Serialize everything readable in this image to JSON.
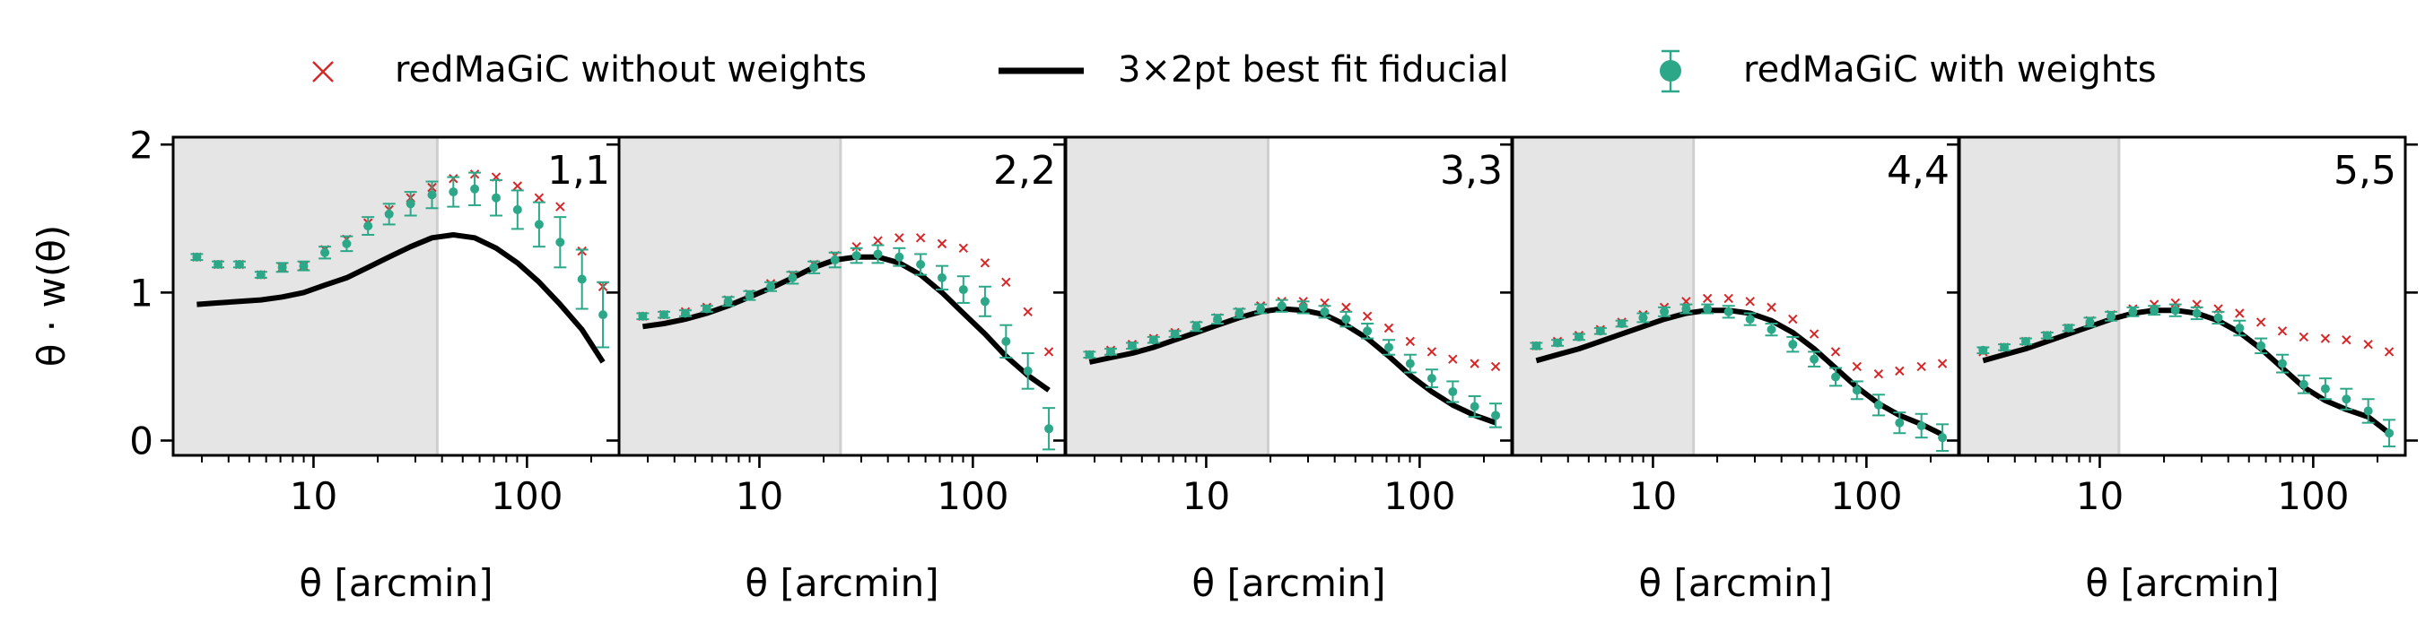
{
  "legend": {
    "without_label": "redMaGiC without weights",
    "fit_label": "3×2pt best fit fiducial",
    "with_label": "redMaGiC with weights"
  },
  "axes": {
    "ylabel": "θ · w(θ)",
    "xlabel": "θ [arcmin]",
    "xscale": "log",
    "xlim": [
      2.2,
      270
    ],
    "ylim": [
      -0.1,
      2.05
    ],
    "yticks": [
      0,
      1,
      2
    ],
    "xticks": [
      10,
      100
    ]
  },
  "colors": {
    "without": "#d62728",
    "fit": "#000000",
    "with": "#2ca889",
    "mask": "#e5e5e5"
  },
  "chart_data": [
    {
      "type": "scatter",
      "label": "1,1",
      "mask_max": 38,
      "series": [
        {
          "name": "redMaGiC without weights",
          "x": [
            2.84,
            3.57,
            4.5,
            5.67,
            7.14,
            8.99,
            11.3,
            14.3,
            18,
            22.6,
            28.5,
            35.9,
            45.2,
            56.9,
            71.7,
            90.3,
            114,
            143,
            181,
            227
          ],
          "y": [
            1.24,
            1.19,
            1.19,
            1.12,
            1.17,
            1.18,
            1.29,
            1.36,
            1.47,
            1.56,
            1.64,
            1.71,
            1.77,
            1.8,
            1.78,
            1.72,
            1.64,
            1.58,
            1.28,
            1.04
          ]
        },
        {
          "name": "3×2pt best fit fiducial",
          "x": [
            2.84,
            3.57,
            4.5,
            5.67,
            7.14,
            8.99,
            11.3,
            14.3,
            18,
            22.6,
            28.5,
            35.9,
            45.2,
            56.9,
            71.7,
            90.3,
            114,
            143,
            181,
            227
          ],
          "y": [
            0.92,
            0.93,
            0.94,
            0.95,
            0.97,
            1.0,
            1.05,
            1.1,
            1.17,
            1.24,
            1.31,
            1.37,
            1.39,
            1.37,
            1.3,
            1.2,
            1.07,
            0.92,
            0.75,
            0.53
          ]
        },
        {
          "name": "redMaGiC with weights",
          "x": [
            2.84,
            3.57,
            4.5,
            5.67,
            7.14,
            8.99,
            11.3,
            14.3,
            18,
            22.6,
            28.5,
            35.9,
            45.2,
            56.9,
            71.7,
            90.3,
            114,
            143,
            181,
            227
          ],
          "y": [
            1.24,
            1.19,
            1.19,
            1.12,
            1.17,
            1.18,
            1.27,
            1.33,
            1.45,
            1.53,
            1.6,
            1.66,
            1.68,
            1.7,
            1.64,
            1.56,
            1.46,
            1.34,
            1.09,
            0.85
          ],
          "err": [
            0.02,
            0.02,
            0.02,
            0.02,
            0.03,
            0.03,
            0.04,
            0.05,
            0.06,
            0.07,
            0.08,
            0.09,
            0.1,
            0.11,
            0.12,
            0.13,
            0.15,
            0.17,
            0.2,
            0.22
          ]
        }
      ]
    },
    {
      "type": "scatter",
      "label": "2,2",
      "mask_max": 24,
      "series": [
        {
          "name": "redMaGiC without weights",
          "x": [
            2.84,
            3.57,
            4.5,
            5.67,
            7.14,
            8.99,
            11.3,
            14.3,
            18,
            22.6,
            28.5,
            35.9,
            45.2,
            56.9,
            71.7,
            90.3,
            114,
            143,
            181,
            227
          ],
          "y": [
            0.84,
            0.85,
            0.87,
            0.9,
            0.95,
            0.99,
            1.06,
            1.12,
            1.19,
            1.25,
            1.31,
            1.35,
            1.37,
            1.37,
            1.33,
            1.3,
            1.2,
            1.07,
            0.87,
            0.6
          ]
        },
        {
          "name": "3×2pt best fit fiducial",
          "x": [
            2.84,
            3.57,
            4.5,
            5.67,
            7.14,
            8.99,
            11.3,
            14.3,
            18,
            22.6,
            28.5,
            35.9,
            45.2,
            56.9,
            71.7,
            90.3,
            114,
            143,
            181,
            227
          ],
          "y": [
            0.77,
            0.79,
            0.82,
            0.86,
            0.91,
            0.97,
            1.03,
            1.1,
            1.17,
            1.22,
            1.24,
            1.24,
            1.2,
            1.12,
            1.0,
            0.86,
            0.72,
            0.57,
            0.44,
            0.34
          ]
        },
        {
          "name": "redMaGiC with weights",
          "x": [
            2.84,
            3.57,
            4.5,
            5.67,
            7.14,
            8.99,
            11.3,
            14.3,
            18,
            22.6,
            28.5,
            35.9,
            45.2,
            56.9,
            71.7,
            90.3,
            114,
            143,
            181,
            227
          ],
          "y": [
            0.84,
            0.85,
            0.86,
            0.89,
            0.94,
            0.98,
            1.04,
            1.1,
            1.17,
            1.22,
            1.25,
            1.26,
            1.24,
            1.19,
            1.1,
            1.02,
            0.94,
            0.67,
            0.47,
            0.08
          ],
          "err": [
            0.02,
            0.02,
            0.02,
            0.02,
            0.03,
            0.03,
            0.03,
            0.04,
            0.04,
            0.05,
            0.05,
            0.06,
            0.06,
            0.07,
            0.08,
            0.09,
            0.1,
            0.11,
            0.12,
            0.14
          ]
        }
      ]
    },
    {
      "type": "scatter",
      "label": "3,3",
      "mask_max": 19.5,
      "series": [
        {
          "name": "redMaGiC without weights",
          "x": [
            2.84,
            3.57,
            4.5,
            5.67,
            7.14,
            8.99,
            11.3,
            14.3,
            18,
            22.6,
            28.5,
            35.9,
            45.2,
            56.9,
            71.7,
            90.3,
            114,
            143,
            181,
            227
          ],
          "y": [
            0.58,
            0.61,
            0.65,
            0.69,
            0.73,
            0.78,
            0.83,
            0.87,
            0.91,
            0.94,
            0.94,
            0.93,
            0.9,
            0.84,
            0.76,
            0.67,
            0.6,
            0.55,
            0.52,
            0.5
          ]
        },
        {
          "name": "3×2pt best fit fiducial",
          "x": [
            2.84,
            3.57,
            4.5,
            5.67,
            7.14,
            8.99,
            11.3,
            14.3,
            18,
            22.6,
            28.5,
            35.9,
            45.2,
            56.9,
            71.7,
            90.3,
            114,
            143,
            181,
            227
          ],
          "y": [
            0.53,
            0.56,
            0.59,
            0.63,
            0.68,
            0.73,
            0.78,
            0.83,
            0.87,
            0.89,
            0.88,
            0.85,
            0.78,
            0.69,
            0.57,
            0.44,
            0.33,
            0.24,
            0.17,
            0.12
          ]
        },
        {
          "name": "redMaGiC with weights",
          "x": [
            2.84,
            3.57,
            4.5,
            5.67,
            7.14,
            8.99,
            11.3,
            14.3,
            18,
            22.6,
            28.5,
            35.9,
            45.2,
            56.9,
            71.7,
            90.3,
            114,
            143,
            181,
            227
          ],
          "y": [
            0.58,
            0.6,
            0.64,
            0.68,
            0.72,
            0.77,
            0.82,
            0.86,
            0.89,
            0.91,
            0.9,
            0.87,
            0.82,
            0.74,
            0.63,
            0.52,
            0.42,
            0.33,
            0.23,
            0.17
          ],
          "err": [
            0.02,
            0.02,
            0.02,
            0.02,
            0.02,
            0.03,
            0.03,
            0.03,
            0.03,
            0.04,
            0.04,
            0.04,
            0.05,
            0.05,
            0.05,
            0.06,
            0.06,
            0.07,
            0.07,
            0.08
          ]
        }
      ]
    },
    {
      "type": "scatter",
      "label": "4,4",
      "mask_max": 15.5,
      "series": [
        {
          "name": "redMaGiC without weights",
          "x": [
            2.84,
            3.57,
            4.5,
            5.67,
            7.14,
            8.99,
            11.3,
            14.3,
            18,
            22.6,
            28.5,
            35.9,
            45.2,
            56.9,
            71.7,
            90.3,
            114,
            143,
            181,
            227
          ],
          "y": [
            0.64,
            0.67,
            0.71,
            0.75,
            0.8,
            0.85,
            0.9,
            0.94,
            0.96,
            0.96,
            0.94,
            0.9,
            0.82,
            0.72,
            0.6,
            0.5,
            0.45,
            0.47,
            0.5,
            0.52
          ]
        },
        {
          "name": "3×2pt best fit fiducial",
          "x": [
            2.84,
            3.57,
            4.5,
            5.67,
            7.14,
            8.99,
            11.3,
            14.3,
            18,
            22.6,
            28.5,
            35.9,
            45.2,
            56.9,
            71.7,
            90.3,
            114,
            143,
            181,
            227
          ],
          "y": [
            0.54,
            0.58,
            0.62,
            0.67,
            0.72,
            0.77,
            0.82,
            0.86,
            0.88,
            0.88,
            0.86,
            0.81,
            0.73,
            0.62,
            0.49,
            0.36,
            0.25,
            0.17,
            0.11,
            0.04
          ]
        },
        {
          "name": "redMaGiC with weights",
          "x": [
            2.84,
            3.57,
            4.5,
            5.67,
            7.14,
            8.99,
            11.3,
            14.3,
            18,
            22.6,
            28.5,
            35.9,
            45.2,
            56.9,
            71.7,
            90.3,
            114,
            143,
            181,
            227
          ],
          "y": [
            0.64,
            0.66,
            0.7,
            0.74,
            0.79,
            0.83,
            0.87,
            0.89,
            0.89,
            0.87,
            0.82,
            0.75,
            0.65,
            0.55,
            0.43,
            0.34,
            0.24,
            0.12,
            0.1,
            0.02
          ],
          "err": [
            0.02,
            0.02,
            0.02,
            0.02,
            0.02,
            0.03,
            0.03,
            0.03,
            0.03,
            0.04,
            0.04,
            0.04,
            0.05,
            0.05,
            0.06,
            0.06,
            0.07,
            0.07,
            0.08,
            0.09
          ]
        }
      ]
    },
    {
      "type": "scatter",
      "label": "5,5",
      "mask_max": 12.3,
      "series": [
        {
          "name": "redMaGiC without weights",
          "x": [
            2.84,
            3.57,
            4.5,
            5.67,
            7.14,
            8.99,
            11.3,
            14.3,
            18,
            22.6,
            28.5,
            35.9,
            45.2,
            56.9,
            71.7,
            90.3,
            114,
            143,
            181,
            227
          ],
          "y": [
            0.6,
            0.63,
            0.67,
            0.71,
            0.76,
            0.81,
            0.85,
            0.89,
            0.92,
            0.93,
            0.92,
            0.89,
            0.86,
            0.8,
            0.74,
            0.7,
            0.69,
            0.68,
            0.65,
            0.6
          ]
        },
        {
          "name": "3×2pt best fit fiducial",
          "x": [
            2.84,
            3.57,
            4.5,
            5.67,
            7.14,
            8.99,
            11.3,
            14.3,
            18,
            22.6,
            28.5,
            35.9,
            45.2,
            56.9,
            71.7,
            90.3,
            114,
            143,
            181,
            227
          ],
          "y": [
            0.54,
            0.58,
            0.62,
            0.67,
            0.72,
            0.77,
            0.82,
            0.86,
            0.88,
            0.88,
            0.86,
            0.81,
            0.73,
            0.62,
            0.49,
            0.36,
            0.27,
            0.21,
            0.16,
            0.05
          ]
        },
        {
          "name": "redMaGiC with weights",
          "x": [
            2.84,
            3.57,
            4.5,
            5.67,
            7.14,
            8.99,
            11.3,
            14.3,
            18,
            22.6,
            28.5,
            35.9,
            45.2,
            56.9,
            71.7,
            90.3,
            114,
            143,
            181,
            227
          ],
          "y": [
            0.61,
            0.63,
            0.67,
            0.71,
            0.76,
            0.8,
            0.84,
            0.87,
            0.88,
            0.88,
            0.86,
            0.83,
            0.76,
            0.64,
            0.52,
            0.38,
            0.35,
            0.28,
            0.2,
            0.05
          ],
          "err": [
            0.02,
            0.02,
            0.02,
            0.02,
            0.02,
            0.03,
            0.03,
            0.03,
            0.03,
            0.04,
            0.04,
            0.04,
            0.05,
            0.05,
            0.06,
            0.06,
            0.07,
            0.07,
            0.08,
            0.09
          ]
        }
      ]
    }
  ]
}
